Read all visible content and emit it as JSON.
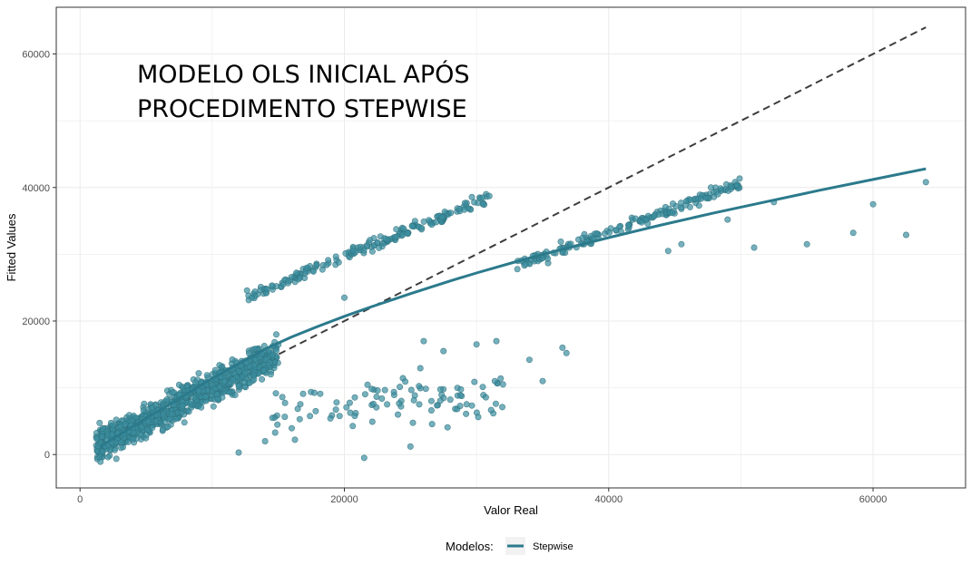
{
  "chart_data": {
    "type": "scatter",
    "annotation": [
      "MODELO OLS INICIAL APÓS",
      "PROCEDIMENTO STEPWISE"
    ],
    "xlabel": "Valor Real",
    "ylabel": "Fitted Values",
    "xlim": [
      -1800,
      67000
    ],
    "ylim": [
      -5000,
      67000
    ],
    "x_ticks": [
      0,
      20000,
      40000,
      60000
    ],
    "x_tick_labels": [
      "0",
      "20000",
      "40000",
      "60000"
    ],
    "y_ticks": [
      0,
      20000,
      40000,
      60000
    ],
    "y_tick_labels": [
      "0",
      "20000",
      "40000",
      "60000"
    ],
    "grid": true,
    "legend": {
      "title": "Modelos:",
      "position": "bottom",
      "entries": [
        {
          "name": "Stepwise",
          "color": "#2b7a8c"
        }
      ]
    },
    "colors": {
      "points": "#3a8fa0",
      "point_edge": "#2e6f7c",
      "fit_line": "#2b7a8c",
      "reference_line": "#3d3d3d",
      "grid": "#ebebeb",
      "panel_border": "#333333"
    },
    "series": [
      {
        "name": "Stepwise",
        "kind": "line",
        "x": [
          1500,
          3000,
          5000,
          8000,
          10000,
          12000,
          14000,
          16000,
          18000,
          20000,
          22000,
          25000,
          28000,
          30000,
          33000,
          36000,
          40000,
          44000,
          48000,
          52000,
          56000,
          60000,
          64000
        ],
        "y": [
          1200,
          3000,
          5400,
          9000,
          11400,
          13600,
          15800,
          17600,
          19200,
          20700,
          22100,
          24100,
          26000,
          27200,
          28900,
          30500,
          32500,
          34400,
          36200,
          37900,
          39600,
          41200,
          42800
        ]
      },
      {
        "name": "reference",
        "kind": "dashed-line",
        "x": [
          1500,
          64000
        ],
        "y": [
          1500,
          64000
        ]
      }
    ],
    "scatter_clusters": [
      {
        "x_range": [
          1200,
          15000
        ],
        "slope": 1.0,
        "intercept": 0,
        "noise": 2300,
        "count": 900
      },
      {
        "x_range": [
          12500,
          31000
        ],
        "slope": 0.82,
        "intercept": 13200,
        "noise": 900,
        "count": 190
      },
      {
        "x_range": [
          33000,
          50000
        ],
        "slope": 0.72,
        "intercept": 4500,
        "noise": 900,
        "count": 170
      },
      {
        "x_range": [
          14000,
          32000
        ],
        "slope": 0.15,
        "intercept": 4000,
        "noise": 4000,
        "count": 100
      }
    ],
    "scatter_points": [
      [
        51000,
        31000
      ],
      [
        55000,
        31500
      ],
      [
        58500,
        33200
      ],
      [
        62500,
        32900
      ],
      [
        64000,
        40800
      ],
      [
        60000,
        37500
      ],
      [
        52500,
        37800
      ],
      [
        49000,
        35200
      ],
      [
        44500,
        30500
      ],
      [
        45500,
        31500
      ],
      [
        36500,
        16000
      ],
      [
        36800,
        15200
      ],
      [
        34000,
        14200
      ],
      [
        35000,
        11000
      ],
      [
        32000,
        10500
      ],
      [
        30000,
        16500
      ],
      [
        31500,
        17000
      ],
      [
        26000,
        17000
      ],
      [
        27500,
        15500
      ],
      [
        20000,
        23500
      ],
      [
        14000,
        2000
      ],
      [
        12000,
        300
      ],
      [
        21500,
        -500
      ],
      [
        25000,
        1200
      ],
      [
        13000,
        23500
      ]
    ]
  }
}
